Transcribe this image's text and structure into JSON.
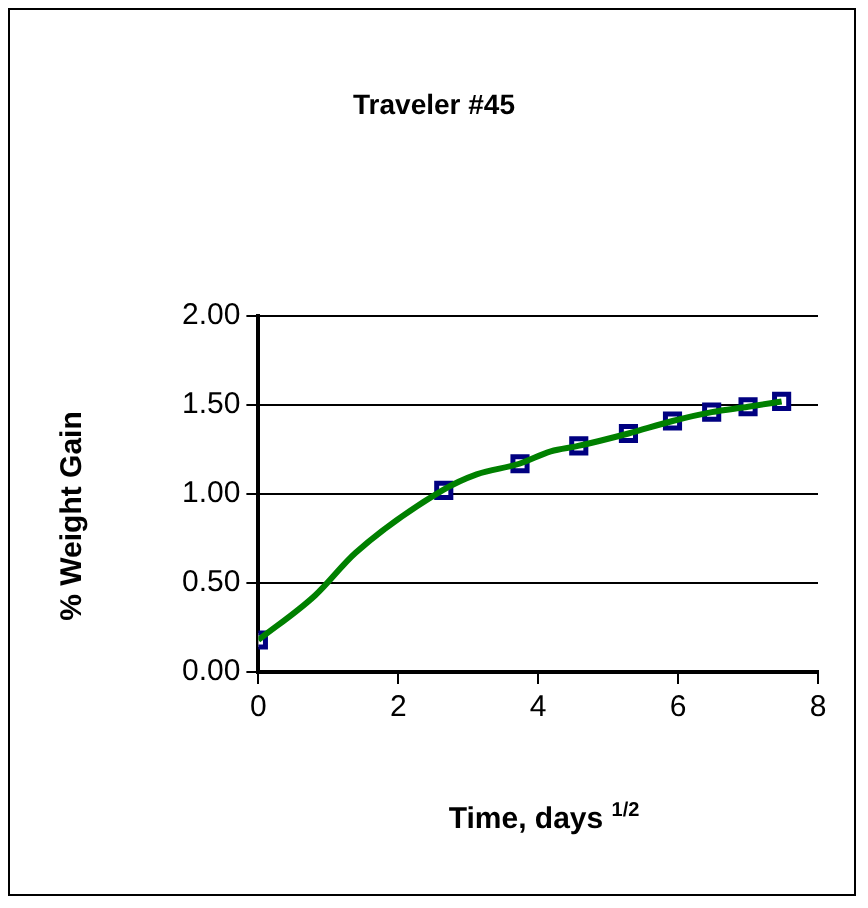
{
  "chart_data": {
    "type": "scatter",
    "title": "Traveler #45",
    "xlabel": "Time, days $^{1/2}$",
    "ylabel": "% Weight Gain",
    "series": [
      {
        "type": "line",
        "color": "#008000",
        "marker": "none",
        "x": [
          0,
          0.81,
          1.39,
          2.63,
          3.12,
          3.73,
          4.18,
          4.57,
          5.29,
          5.92,
          6.48,
          7.0,
          7.48
        ],
        "values": [
          0.18,
          0.43,
          0.67,
          1.02,
          1.11,
          1.17,
          1.24,
          1.27,
          1.34,
          1.41,
          1.46,
          1.49,
          1.52
        ]
      },
      {
        "type": "scatter",
        "color": "#000080",
        "marker": "square",
        "x": [
          0,
          2.65,
          3.74,
          4.58,
          5.29,
          5.92,
          6.48,
          7.0,
          7.48
        ],
        "values": [
          0.18,
          1.02,
          1.17,
          1.27,
          1.34,
          1.41,
          1.46,
          1.49,
          1.52
        ]
      }
    ],
    "xlim": [
      0,
      8
    ],
    "xticks": [
      0,
      2,
      4,
      6,
      8
    ],
    "ylim": [
      0,
      2
    ],
    "yticks": [
      {
        "value": 0,
        "label": "0.00"
      },
      {
        "value": 0.5,
        "label": "0.50"
      },
      {
        "value": 1,
        "label": "1.00"
      },
      {
        "value": 1.5,
        "label": "1.50"
      },
      {
        "value": 2,
        "label": "2.00"
      }
    ],
    "grid": "y",
    "legend": false
  }
}
